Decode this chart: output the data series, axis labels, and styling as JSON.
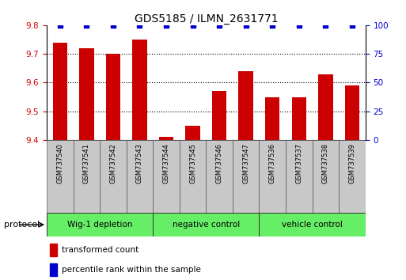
{
  "title": "GDS5185 / ILMN_2631771",
  "samples": [
    "GSM737540",
    "GSM737541",
    "GSM737542",
    "GSM737543",
    "GSM737544",
    "GSM737545",
    "GSM737546",
    "GSM737547",
    "GSM737536",
    "GSM737537",
    "GSM737538",
    "GSM737539"
  ],
  "red_values": [
    9.74,
    9.72,
    9.7,
    9.75,
    9.41,
    9.45,
    9.57,
    9.64,
    9.55,
    9.55,
    9.63,
    9.59
  ],
  "blue_values": [
    100,
    100,
    100,
    100,
    100,
    100,
    100,
    100,
    100,
    100,
    100,
    100
  ],
  "ymin": 9.4,
  "ymax": 9.8,
  "y2min": 0,
  "y2max": 100,
  "yticks": [
    9.4,
    9.5,
    9.6,
    9.7,
    9.8
  ],
  "y2ticks": [
    0,
    25,
    50,
    75,
    100
  ],
  "groups": [
    {
      "label": "Wig-1 depletion",
      "start": 0,
      "end": 3
    },
    {
      "label": "negative control",
      "start": 4,
      "end": 7
    },
    {
      "label": "vehicle control",
      "start": 8,
      "end": 11
    }
  ],
  "bar_color": "#cc0000",
  "dot_color": "#0000cc",
  "group_bg_color": "#66ee66",
  "sample_bg_color": "#c8c8c8",
  "legend_red": "transformed count",
  "legend_blue": "percentile rank within the sample",
  "protocol_label": "protocol",
  "title_color": "#000000",
  "red_axis_color": "#cc0000",
  "blue_axis_color": "#0000cc",
  "bar_width": 0.55,
  "dot_size": 15
}
